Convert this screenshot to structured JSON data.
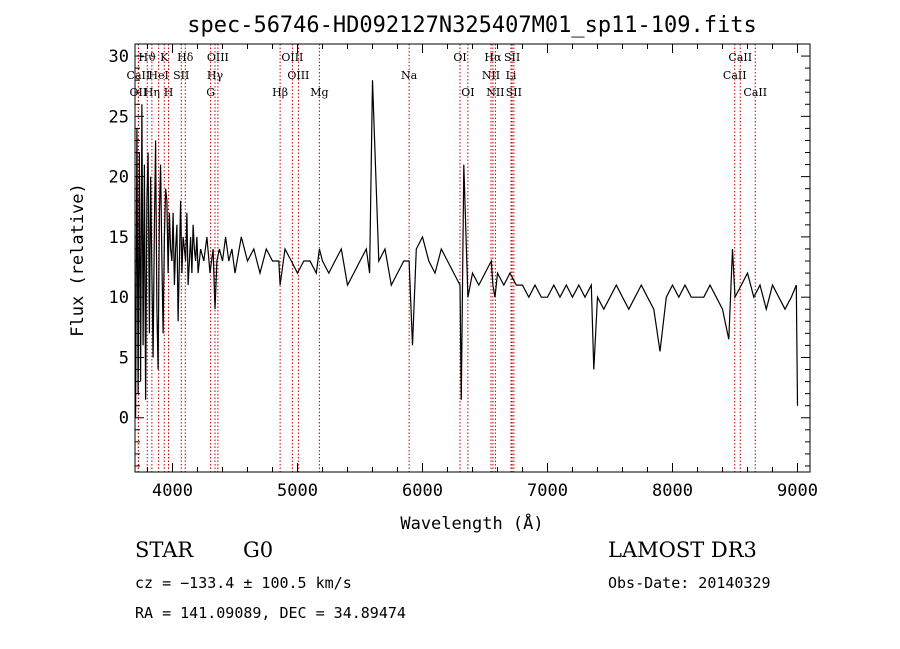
{
  "chart_data": {
    "type": "line",
    "title": "spec-56746-HD092127N325407M01_sp11-109.fits",
    "xlabel": "Wavelength (Å)",
    "ylabel": "Flux (relative)",
    "xlim": [
      3700,
      9100
    ],
    "ylim": [
      -4.5,
      31
    ],
    "xticks": [
      4000,
      5000,
      6000,
      7000,
      8000,
      9000
    ],
    "yticks": [
      0,
      5,
      10,
      15,
      20,
      25,
      30
    ],
    "grid": false,
    "line_color": "#000000",
    "marker_color": "#c00000",
    "series": [
      {
        "x": [
          3705,
          3715,
          3725,
          3735,
          3745,
          3755,
          3765,
          3775,
          3785,
          3795,
          3805,
          3815,
          3825,
          3835,
          3845,
          3855,
          3865,
          3875,
          3885,
          3895,
          3905,
          3915,
          3925,
          3935,
          3945,
          3955,
          3965,
          3975,
          3985,
          3995,
          4005,
          4015,
          4025,
          4035,
          4045,
          4055,
          4065,
          4075,
          4085,
          4095,
          4105,
          4115,
          4125,
          4135,
          4145,
          4155,
          4165,
          4175,
          4185,
          4195,
          4205,
          4225,
          4250,
          4275,
          4300,
          4325,
          4340,
          4355,
          4375,
          4400,
          4425,
          4450,
          4475,
          4500,
          4550,
          4600,
          4650,
          4700,
          4750,
          4800,
          4850,
          4861,
          4900,
          4950,
          5000,
          5050,
          5100,
          5150,
          5175,
          5200,
          5250,
          5300,
          5350,
          5400,
          5450,
          5500,
          5550,
          5577,
          5600,
          5650,
          5700,
          5750,
          5800,
          5850,
          5893,
          5920,
          5950,
          6000,
          6050,
          6100,
          6150,
          6200,
          6250,
          6300,
          6310,
          6330,
          6363,
          6400,
          6450,
          6500,
          6550,
          6563,
          6580,
          6600,
          6650,
          6700,
          6750,
          6800,
          6850,
          6900,
          6950,
          7000,
          7050,
          7100,
          7150,
          7200,
          7250,
          7300,
          7350,
          7370,
          7400,
          7450,
          7500,
          7550,
          7600,
          7650,
          7700,
          7750,
          7800,
          7850,
          7900,
          7950,
          8000,
          8050,
          8100,
          8150,
          8200,
          8250,
          8300,
          8350,
          8400,
          8450,
          8480,
          8500,
          8550,
          8600,
          8650,
          8700,
          8750,
          8800,
          8850,
          8900,
          8950,
          8990,
          9000
        ],
        "y": [
          0,
          24,
          2,
          22,
          3,
          26,
          6,
          21,
          1.5,
          18,
          22,
          7,
          20,
          12,
          5,
          16,
          23,
          9,
          4,
          17,
          21,
          13,
          7,
          15,
          19,
          18,
          12,
          17,
          14,
          13,
          17,
          11,
          14,
          16,
          8,
          13,
          18,
          12,
          15,
          14,
          13,
          17,
          11,
          13,
          15,
          12,
          16,
          14,
          13,
          15,
          12,
          14,
          13,
          15,
          12,
          14,
          9,
          13,
          14,
          13,
          15,
          13,
          14,
          12,
          15,
          13,
          14,
          12,
          14,
          13,
          13,
          11,
          14,
          13,
          12,
          13,
          13,
          12,
          14,
          13,
          12,
          13,
          14,
          11,
          12,
          13,
          14,
          12,
          28,
          13,
          14,
          11,
          12,
          13,
          13,
          6,
          14,
          15,
          13,
          12,
          14,
          13,
          12,
          11,
          1.5,
          21,
          10,
          12,
          11,
          12,
          13,
          11,
          10,
          12,
          11,
          12,
          11,
          11,
          10,
          11,
          10,
          10,
          11,
          10,
          11,
          10,
          11,
          10,
          11,
          4,
          10,
          9,
          10,
          11,
          10,
          9,
          10,
          11,
          10,
          9,
          5.5,
          10,
          11,
          10,
          11,
          10,
          10,
          10,
          11,
          10,
          9,
          6.5,
          14,
          10,
          11,
          12,
          10,
          11,
          9,
          11,
          10,
          9,
          10,
          11,
          1
        ]
      }
    ],
    "lines": [
      {
        "label": "Hϑ",
        "x": 3798,
        "row": 0
      },
      {
        "label": "OII",
        "x": 3727,
        "row": 2
      },
      {
        "label": "CaII",
        "x": 3727,
        "row": 1
      },
      {
        "label": "K",
        "x": 3934,
        "row": 0
      },
      {
        "label": "HeI",
        "x": 3889,
        "row": 1
      },
      {
        "label": "Hη",
        "x": 3835,
        "row": 2
      },
      {
        "label": "SII",
        "x": 4070,
        "row": 1
      },
      {
        "label": "H",
        "x": 3968,
        "row": 2
      },
      {
        "label": "Hδ",
        "x": 4102,
        "row": 0
      },
      {
        "label": "OIII",
        "x": 4363,
        "row": 0
      },
      {
        "label": "Hγ",
        "x": 4340,
        "row": 1
      },
      {
        "label": "G",
        "x": 4305,
        "row": 2
      },
      {
        "label": "Hβ",
        "x": 4861,
        "row": 2
      },
      {
        "label": "OIII",
        "x": 4959,
        "row": 0
      },
      {
        "label": "OIII",
        "x": 5007,
        "row": 1
      },
      {
        "label": "Mg",
        "x": 5175,
        "row": 2
      },
      {
        "label": "Na",
        "x": 5893,
        "row": 1
      },
      {
        "label": "OI",
        "x": 6300,
        "row": 0
      },
      {
        "label": "OI",
        "x": 6363,
        "row": 2
      },
      {
        "label": "Hα",
        "x": 6563,
        "row": 0
      },
      {
        "label": "NII",
        "x": 6548,
        "row": 1
      },
      {
        "label": "NII",
        "x": 6583,
        "row": 2
      },
      {
        "label": "SII",
        "x": 6717,
        "row": 0
      },
      {
        "label": "Li",
        "x": 6708,
        "row": 1
      },
      {
        "label": "SII",
        "x": 6731,
        "row": 2
      },
      {
        "label": "CaII",
        "x": 8498,
        "row": 1
      },
      {
        "label": "CaII",
        "x": 8542,
        "row": 0
      },
      {
        "label": "CaII",
        "x": 8662,
        "row": 2
      }
    ]
  },
  "info": {
    "class": "STAR",
    "subclass": "G0",
    "survey": "LAMOST DR3",
    "cz": "cz = −133.4 ± 100.5 km/s",
    "obs_date": "Obs-Date: 20140329",
    "coords": "RA = 141.09089, DEC =  34.89474"
  }
}
